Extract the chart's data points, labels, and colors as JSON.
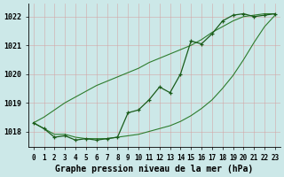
{
  "xlabel": "Graphe pression niveau de la mer (hPa)",
  "hours": [
    0,
    1,
    2,
    3,
    4,
    5,
    6,
    7,
    8,
    9,
    10,
    11,
    12,
    13,
    14,
    15,
    16,
    17,
    18,
    19,
    20,
    21,
    22,
    23
  ],
  "line_main": [
    1018.3,
    1018.1,
    1017.8,
    1017.85,
    1017.7,
    1017.75,
    1017.7,
    1017.75,
    1017.8,
    1018.65,
    1018.75,
    1019.1,
    1019.55,
    1019.35,
    1020.0,
    1021.15,
    1021.05,
    1021.4,
    1021.85,
    1022.05,
    1022.1,
    1022.0,
    1022.05,
    1022.1
  ],
  "line_upper": [
    1018.3,
    1018.5,
    1018.75,
    1019.0,
    1019.2,
    1019.4,
    1019.6,
    1019.75,
    1019.9,
    1020.05,
    1020.2,
    1020.4,
    1020.55,
    1020.7,
    1020.85,
    1021.0,
    1021.2,
    1021.45,
    1021.65,
    1021.85,
    1022.0,
    1022.05,
    1022.1,
    1022.1
  ],
  "line_lower": [
    1018.3,
    1018.1,
    1017.9,
    1017.9,
    1017.8,
    1017.75,
    1017.75,
    1017.75,
    1017.8,
    1017.85,
    1017.9,
    1018.0,
    1018.1,
    1018.2,
    1018.35,
    1018.55,
    1018.8,
    1019.1,
    1019.5,
    1019.95,
    1020.5,
    1021.1,
    1021.65,
    1022.05
  ],
  "ylim_min": 1017.45,
  "ylim_max": 1022.45,
  "yticks": [
    1018,
    1019,
    1020,
    1021,
    1022
  ],
  "line_color_main": "#1a5c1a",
  "line_color_band": "#2e7d2e",
  "bg_color": "#cce8e8",
  "grid_color": "#d4a0a0",
  "tick_label_size": 5.5,
  "xlabel_fontsize": 7
}
